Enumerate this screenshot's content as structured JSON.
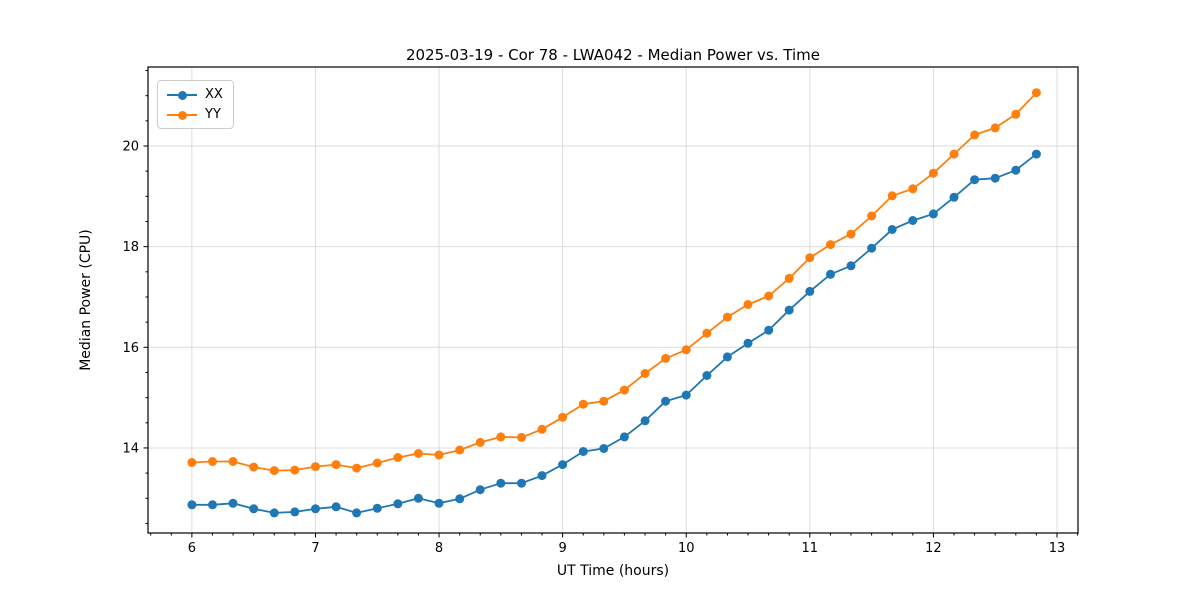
{
  "chart_data": {
    "type": "line",
    "title": "2025-03-19 - Cor 78 - LWA042 - Median Power vs. Time",
    "xlabel": "UT Time (hours)",
    "ylabel": "Median Power (CPU)",
    "legend_position": "upper-left",
    "grid": "major",
    "grid_color": "#dcdcdc",
    "background": "#ffffff",
    "xlim": [
      5.645,
      13.17
    ],
    "ylim": [
      12.31,
      21.57
    ],
    "x_major_ticks": [
      6,
      7,
      8,
      9,
      10,
      11,
      12,
      13
    ],
    "y_major_ticks": [
      14,
      16,
      18,
      20
    ],
    "x_minor_step": 0.1666667,
    "y_minor_step": 0.5,
    "marker": "circle",
    "marker_radius": 4.5,
    "line_width": 1.8,
    "x": [
      6.0,
      6.167,
      6.333,
      6.5,
      6.667,
      6.833,
      7.0,
      7.167,
      7.333,
      7.5,
      7.667,
      7.833,
      8.0,
      8.167,
      8.333,
      8.5,
      8.667,
      8.833,
      9.0,
      9.167,
      9.333,
      9.5,
      9.667,
      9.833,
      10.0,
      10.167,
      10.333,
      10.5,
      10.667,
      10.833,
      11.0,
      11.167,
      11.333,
      11.5,
      11.667,
      11.833,
      12.0,
      12.167,
      12.333,
      12.5,
      12.667,
      12.833
    ],
    "series": [
      {
        "name": "XX",
        "color": "#1f77b4",
        "values": [
          12.87,
          12.87,
          12.9,
          12.79,
          12.71,
          12.73,
          12.79,
          12.83,
          12.71,
          12.8,
          12.89,
          13.0,
          12.9,
          12.99,
          13.17,
          13.3,
          13.3,
          13.45,
          13.67,
          13.93,
          13.99,
          14.22,
          14.54,
          14.93,
          15.05,
          15.44,
          15.81,
          16.08,
          16.34,
          16.74,
          17.11,
          17.45,
          17.62,
          17.97,
          18.34,
          18.52,
          18.65,
          18.98,
          19.33,
          19.36,
          19.52,
          19.84
        ]
      },
      {
        "name": "YY",
        "color": "#ff7f0e",
        "values": [
          13.71,
          13.73,
          13.73,
          13.62,
          13.55,
          13.56,
          13.63,
          13.67,
          13.6,
          13.7,
          13.81,
          13.89,
          13.86,
          13.96,
          14.11,
          14.22,
          14.21,
          14.37,
          14.61,
          14.87,
          14.93,
          15.15,
          15.48,
          15.78,
          15.95,
          16.28,
          16.6,
          16.85,
          17.02,
          17.37,
          17.78,
          18.04,
          18.25,
          18.61,
          19.01,
          19.15,
          19.46,
          19.84,
          20.22,
          20.36,
          20.63,
          21.06
        ]
      }
    ]
  }
}
